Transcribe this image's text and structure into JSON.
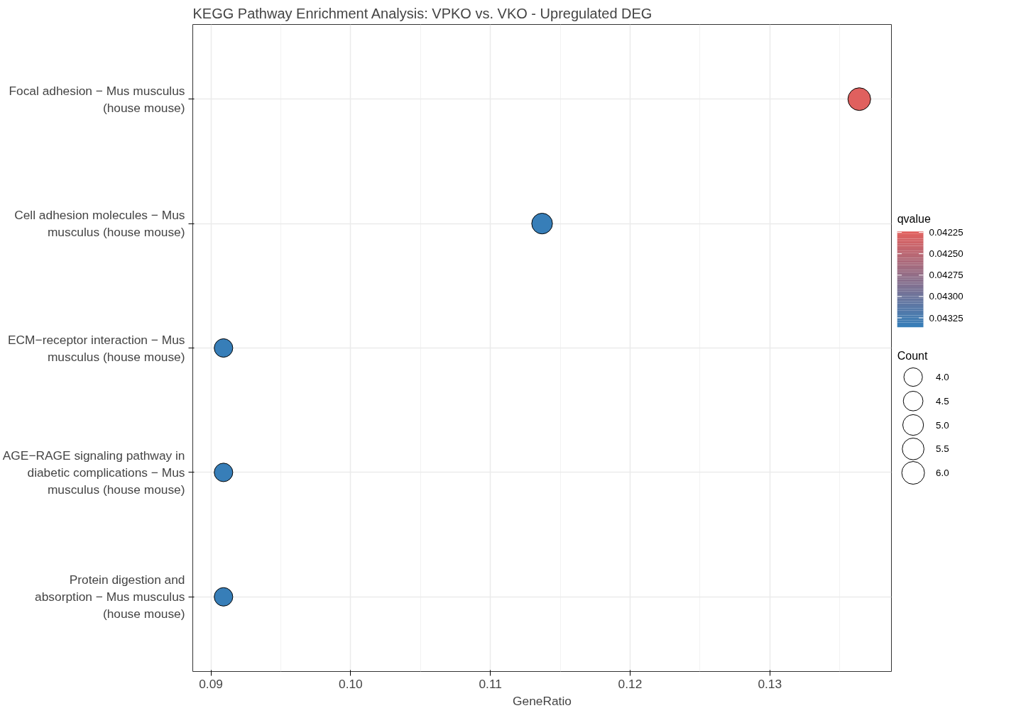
{
  "chart_data": {
    "type": "bubble",
    "orientation": "horizontal",
    "title": "KEGG Pathway Enrichment Analysis: VPKO vs. VKO - Upregulated DEG",
    "xlabel": "GeneRatio",
    "clabel": "qvalue",
    "legend_title": "Count",
    "categories": [
      "Focal adhesion − Mus musculus (house mouse)",
      "Cell adhesion molecules − Mus musculus (house mouse)",
      "ECM−receptor interaction − Mus musculus (house mouse)",
      "AGE−RAGE signaling pathway in diabetic complications − Mus musculus (house mouse)",
      "Protein digestion and absorption − Mus musculus (house mouse)"
    ],
    "values": [
      0.1364,
      0.1137,
      0.0909,
      0.0909,
      0.0909
    ],
    "sizes": [
      6,
      5,
      4,
      4,
      4
    ],
    "cvalues": [
      0.04224,
      0.04336,
      0.04336,
      0.04336,
      0.04336
    ],
    "colors": [
      "#e0605e",
      "#377eb8",
      "#377eb8",
      "#377eb8",
      "#377eb8"
    ],
    "clim": [
      0.04224,
      0.04336
    ],
    "cticks": [
      {
        "value": 0.04225,
        "label": "0.04225"
      },
      {
        "value": 0.0425,
        "label": "0.04250"
      },
      {
        "value": 0.04275,
        "label": "0.04275"
      },
      {
        "value": 0.043,
        "label": "0.04300"
      },
      {
        "value": 0.04325,
        "label": "0.04325"
      }
    ],
    "size_legend": [
      {
        "value": 4,
        "label": "4.0"
      },
      {
        "value": 4.5,
        "label": "4.5"
      },
      {
        "value": 5,
        "label": "5.0"
      },
      {
        "value": 5.5,
        "label": "5.5"
      },
      {
        "value": 6,
        "label": "6.0"
      }
    ],
    "xlim": [
      0.0887,
      0.1387
    ],
    "xticks": [
      {
        "value": 0.09,
        "label": "0.09"
      },
      {
        "value": 0.1,
        "label": "0.10"
      },
      {
        "value": 0.11,
        "label": "0.11"
      },
      {
        "value": 0.12,
        "label": "0.12"
      },
      {
        "value": 0.13,
        "label": "0.13"
      }
    ],
    "grid": true
  }
}
